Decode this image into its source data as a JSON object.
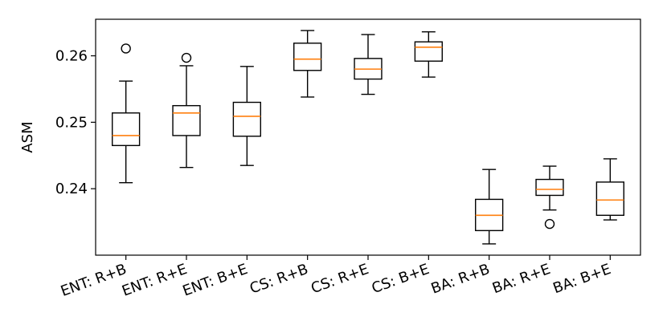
{
  "chart_data": {
    "type": "box",
    "title": "",
    "xlabel": "",
    "ylabel": "ASM",
    "ylim": [
      0.23,
      0.2655
    ],
    "yticks": [
      0.24,
      0.25,
      0.26
    ],
    "ytick_labels": [
      "0.24",
      "0.25",
      "0.26"
    ],
    "grid": false,
    "categories": [
      "ENT: R+B",
      "ENT: R+E",
      "ENT: B+E",
      "CS: R+B",
      "CS: R+E",
      "CS: B+E",
      "BA: R+B",
      "BA: R+E",
      "BA: B+E"
    ],
    "boxes": [
      {
        "whisker_low": 0.2409,
        "q1": 0.2465,
        "median": 0.248,
        "q3": 0.2514,
        "whisker_high": 0.2562,
        "outliers": [
          0.2611
        ]
      },
      {
        "whisker_low": 0.2432,
        "q1": 0.248,
        "median": 0.2514,
        "q3": 0.2525,
        "whisker_high": 0.2585,
        "outliers": [
          0.2597
        ]
      },
      {
        "whisker_low": 0.2435,
        "q1": 0.2479,
        "median": 0.2509,
        "q3": 0.253,
        "whisker_high": 0.2584,
        "outliers": []
      },
      {
        "whisker_low": 0.2538,
        "q1": 0.2578,
        "median": 0.2595,
        "q3": 0.2619,
        "whisker_high": 0.2638,
        "outliers": []
      },
      {
        "whisker_low": 0.2542,
        "q1": 0.2565,
        "median": 0.258,
        "q3": 0.2596,
        "whisker_high": 0.2632,
        "outliers": []
      },
      {
        "whisker_low": 0.2568,
        "q1": 0.2592,
        "median": 0.2613,
        "q3": 0.2621,
        "whisker_high": 0.2636,
        "outliers": []
      },
      {
        "whisker_low": 0.2317,
        "q1": 0.2337,
        "median": 0.236,
        "q3": 0.2384,
        "whisker_high": 0.2429,
        "outliers": []
      },
      {
        "whisker_low": 0.2368,
        "q1": 0.239,
        "median": 0.2399,
        "q3": 0.2414,
        "whisker_high": 0.2434,
        "outliers": [
          0.2347
        ]
      },
      {
        "whisker_low": 0.2353,
        "q1": 0.236,
        "median": 0.2383,
        "q3": 0.241,
        "whisker_high": 0.2445,
        "outliers": []
      }
    ],
    "colors": {
      "box": "#000000",
      "median": "#ff7f0e",
      "outlier": "#000000"
    }
  }
}
